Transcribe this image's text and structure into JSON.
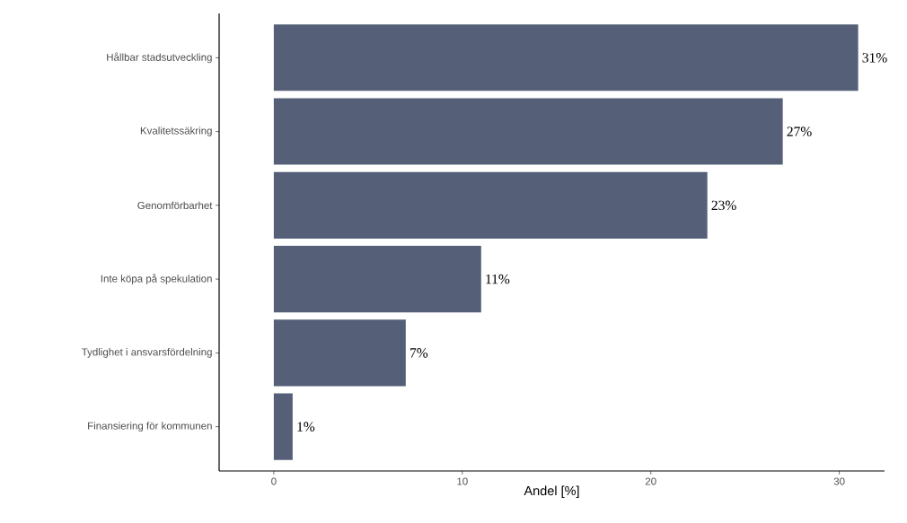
{
  "chart_data": {
    "type": "bar",
    "orientation": "horizontal",
    "xlabel": "Andel [%]",
    "categories": [
      "Hållbar stadsutveckling",
      "Kvalitetssäkring",
      "Genomförbarhet",
      "Inte köpa på spekulation",
      "Tydlighet i ansvarsfördelning",
      "Finansiering för kommunen"
    ],
    "values": [
      31,
      27,
      23,
      11,
      7,
      1
    ],
    "value_labels": [
      "31%",
      "27%",
      "23%",
      "11%",
      "7%",
      "1%"
    ],
    "color": "#556078",
    "xlim": [
      -2.9,
      32.4
    ],
    "xticks": [
      0,
      10,
      20,
      30
    ]
  }
}
